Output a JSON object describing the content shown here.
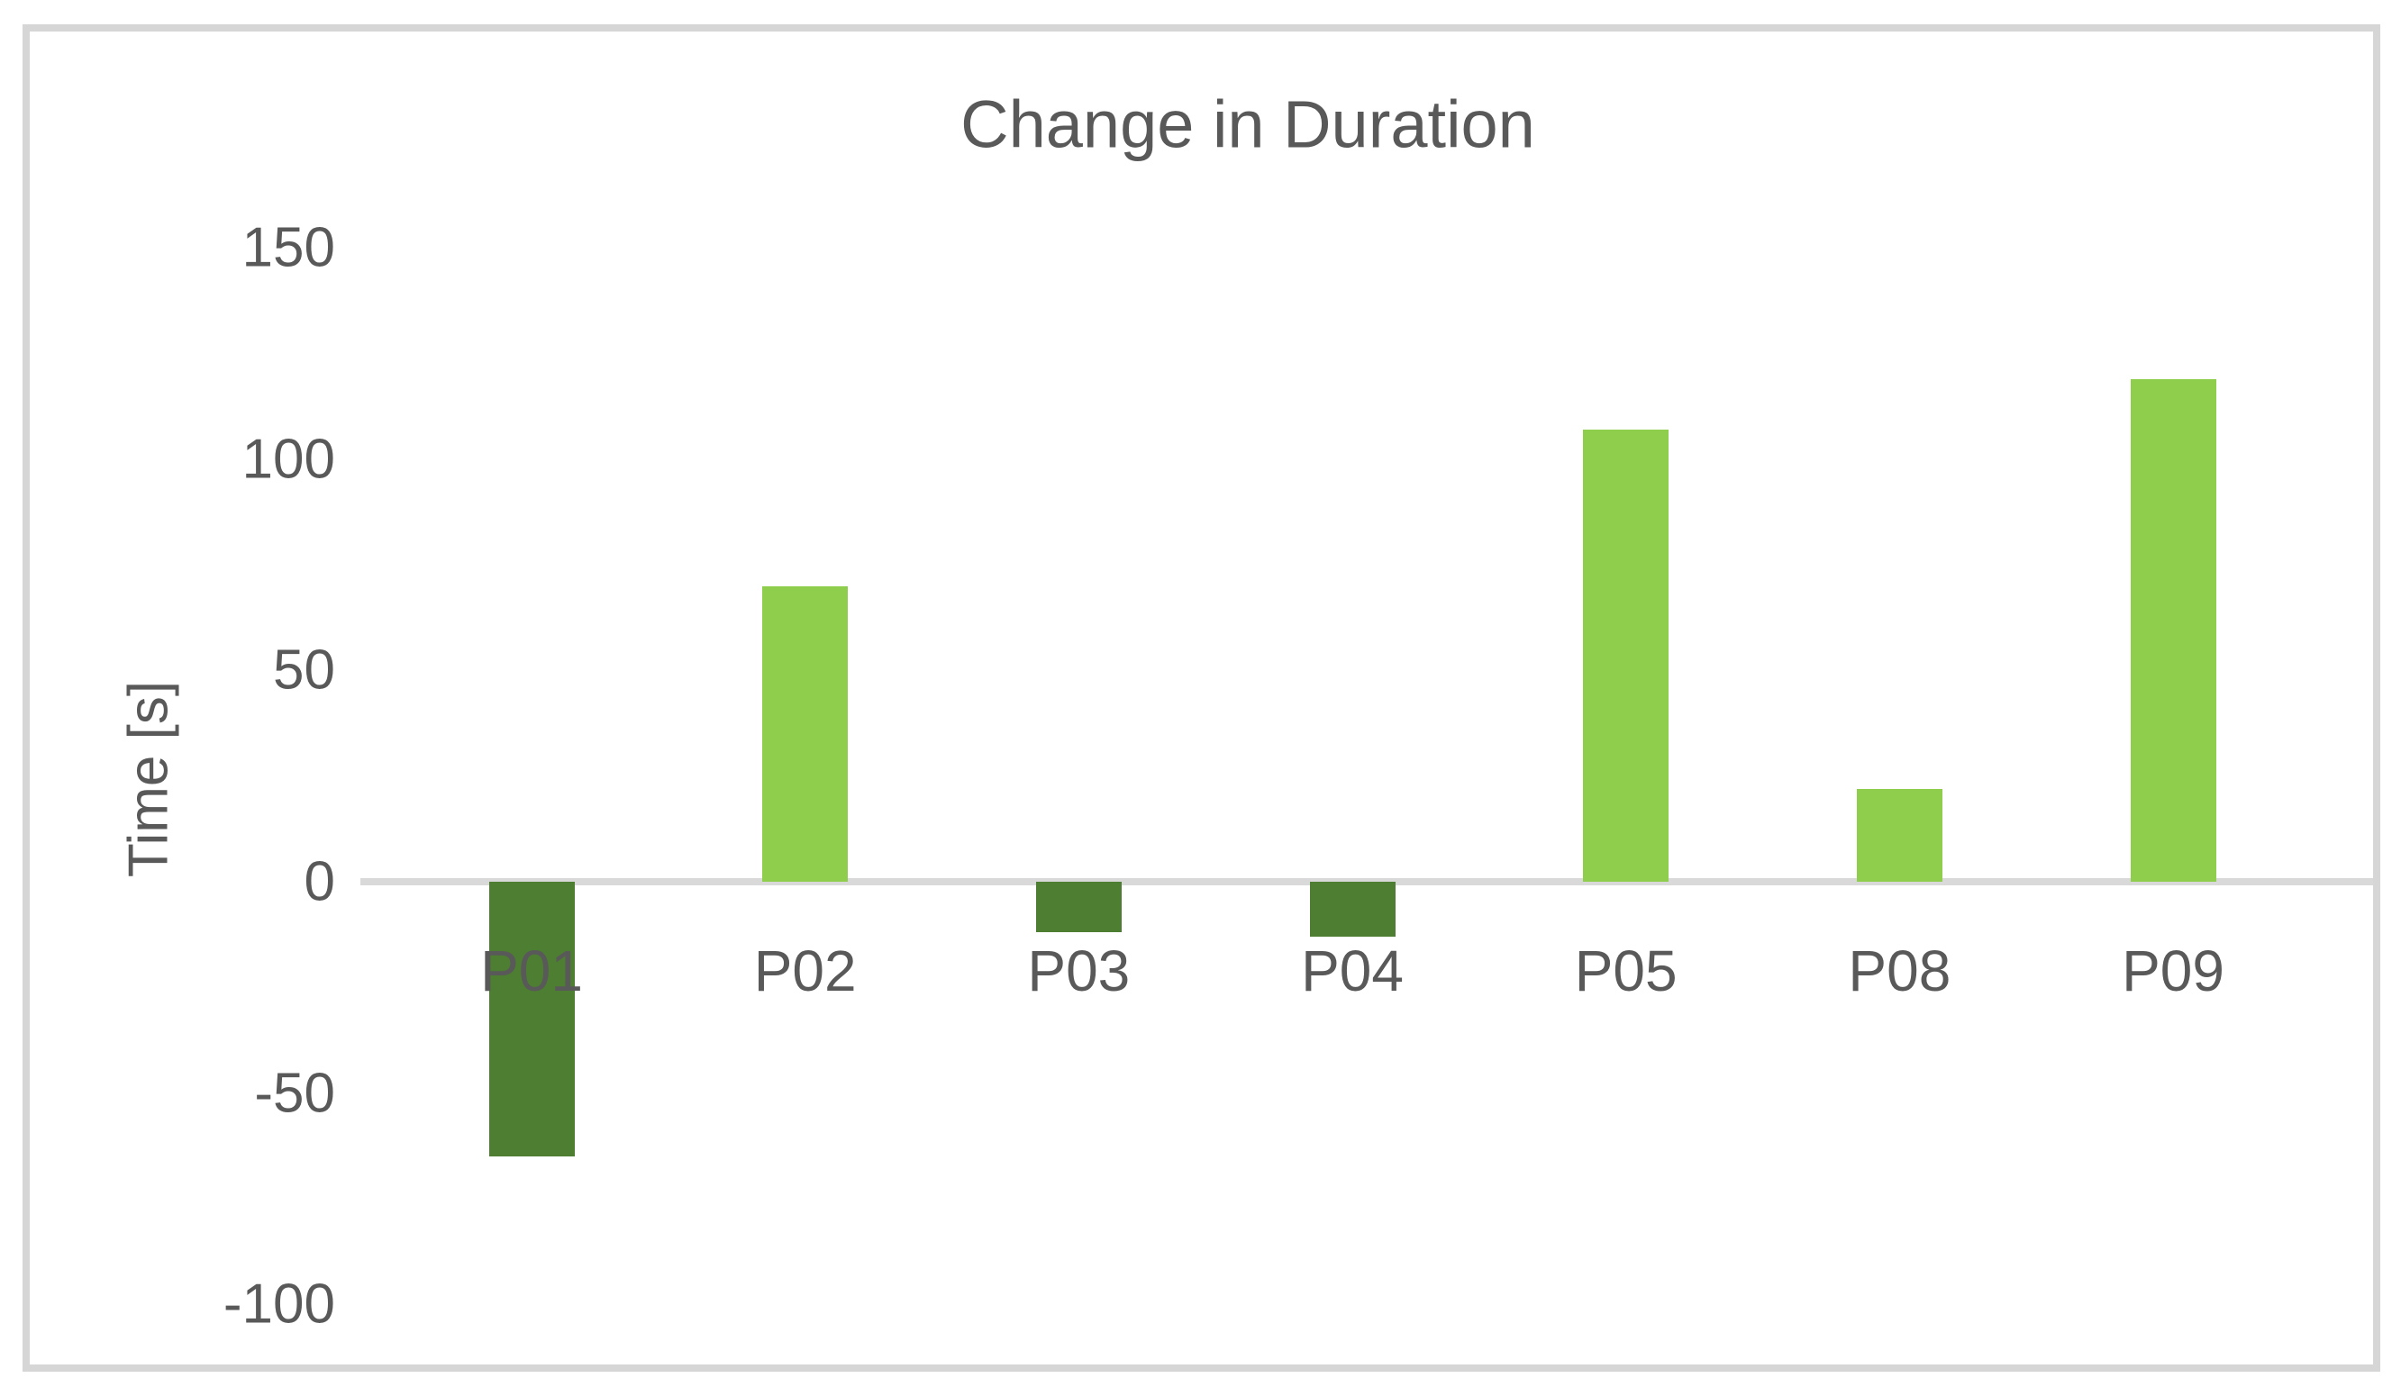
{
  "chart_data": {
    "type": "bar",
    "title": "Change in Duration",
    "ylabel": "Time [s]",
    "xlabel": "",
    "categories": [
      "P01",
      "P02",
      "P03",
      "P04",
      "P05",
      "P08",
      "P09"
    ],
    "values": [
      -65,
      70,
      -12,
      -13,
      107,
      22,
      119
    ],
    "yticks": [
      150,
      100,
      50,
      0,
      -50,
      -100
    ],
    "ylim": [
      -100,
      150
    ],
    "grid": false,
    "legend_position": "none",
    "colors": {
      "positive_bar": "#8FCE4D",
      "negative_bar": "#4E7E31",
      "axis_line": "#D9D9D9",
      "text": "#595959",
      "chart_border": "#D6D6D6"
    }
  }
}
